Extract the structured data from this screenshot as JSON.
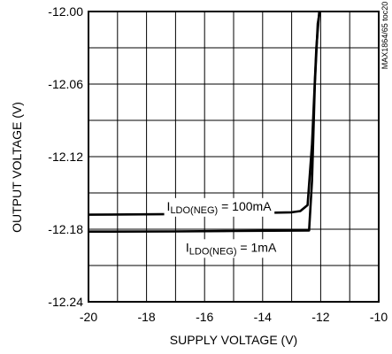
{
  "chart_data": {
    "type": "line",
    "title": "",
    "xlabel": "SUPPLY VOLTAGE (V)",
    "ylabel": "OUTPUT VOLTAGE (V)",
    "xlim": [
      -20,
      -10
    ],
    "ylim": [
      -12.24,
      -12.0
    ],
    "x_ticks": [
      "-20",
      "-18",
      "-16",
      "-14",
      "-12",
      "-10"
    ],
    "y_ticks": [
      "-12.00",
      "-12.06",
      "-12.12",
      "-12.18",
      "-12.24"
    ],
    "grid": true,
    "figure_id": "MAX1864/65 toc20",
    "series": [
      {
        "name": "100mA",
        "label_main": "I",
        "label_sub": "LDO(NEG)",
        "label_tail": " = 100mA",
        "x": [
          -20,
          -17,
          -15,
          -13,
          -12.7,
          -12.45,
          -12.3,
          -12.15,
          -12.05
        ],
        "y": [
          -12.168,
          -12.1675,
          -12.167,
          -12.166,
          -12.165,
          -12.16,
          -12.11,
          -12.03,
          -12.0
        ]
      },
      {
        "name": "1mA",
        "label_main": "I",
        "label_sub": "LDO(NEG)",
        "label_tail": " = 1mA",
        "x": [
          -20,
          -17,
          -15,
          -13,
          -12.4,
          -12.3,
          -12.2,
          -12.1,
          -12.03
        ],
        "y": [
          -12.182,
          -12.1818,
          -12.1815,
          -12.1812,
          -12.181,
          -12.14,
          -12.06,
          -12.01,
          -12.0
        ]
      }
    ]
  }
}
